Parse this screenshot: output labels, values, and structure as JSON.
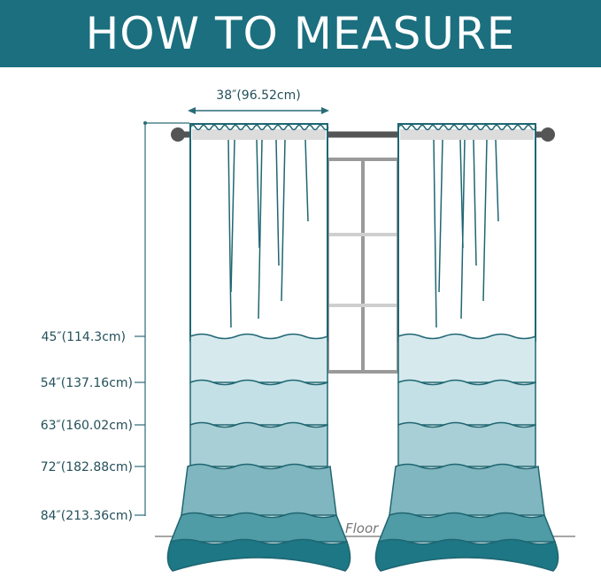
{
  "header": {
    "title": "HOW TO MEASURE"
  },
  "width_label": "38″(96.52cm)",
  "length_labels": [
    "45″(114.3cm)",
    "54″(137.16cm)",
    "63″(160.02cm)",
    "72″(182.88cm)",
    "84″(213.36cm)"
  ],
  "floor_label": "Floor",
  "colors": {
    "header": "#1b6f7f",
    "outline": "#1f6672",
    "bands": [
      "#d6eaee",
      "#c2e0e5",
      "#a8cfd5",
      "#80b6bf",
      "#4f9ba6",
      "#1d7785"
    ]
  }
}
